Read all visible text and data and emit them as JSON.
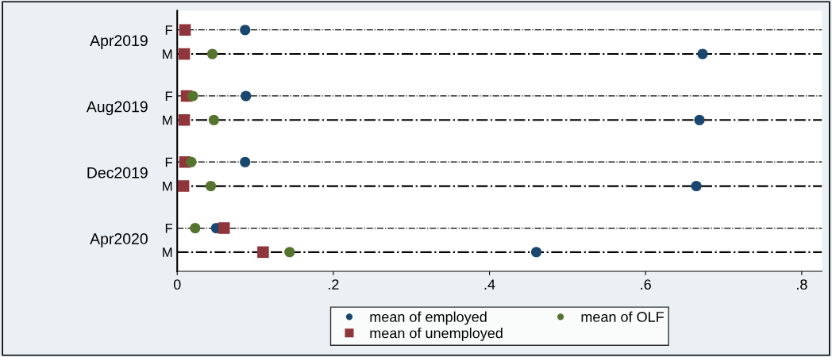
{
  "chart_data": {
    "type": "scatter",
    "orientation": "horizontal",
    "categories": [
      "F",
      "M",
      "F",
      "M",
      "F",
      "M",
      "F",
      "M"
    ],
    "annotations": [
      "Apr2019",
      "Aug2019",
      "Dec2019",
      "Apr2020"
    ],
    "series": [
      {
        "name": "mean of employed",
        "color": "#1a476f",
        "marker": "circle",
        "values": [
          0.087,
          0.673,
          0.088,
          0.669,
          0.087,
          0.665,
          0.05,
          0.46
        ]
      },
      {
        "name": "mean of unemployed",
        "color": "#90353b",
        "marker": "square",
        "values": [
          0.01,
          0.009,
          0.012,
          0.009,
          0.01,
          0.008,
          0.06,
          0.11
        ]
      },
      {
        "name": "mean of OLF",
        "color": "#55752f",
        "marker": "circle",
        "values": [
          null,
          0.045,
          0.02,
          0.047,
          0.018,
          0.043,
          0.023,
          0.144
        ]
      }
    ],
    "xlim": [
      0,
      0.826
    ],
    "xticks": [
      {
        "value": 0,
        "label": "0"
      },
      {
        "value": 0.2,
        "label": ".2"
      },
      {
        "value": 0.4,
        "label": ".4"
      },
      {
        "value": 0.6,
        "label": ".6"
      },
      {
        "value": 0.8,
        "label": ".8"
      }
    ],
    "grid": "y",
    "line_style": "dashdot",
    "legend": "bottom"
  }
}
